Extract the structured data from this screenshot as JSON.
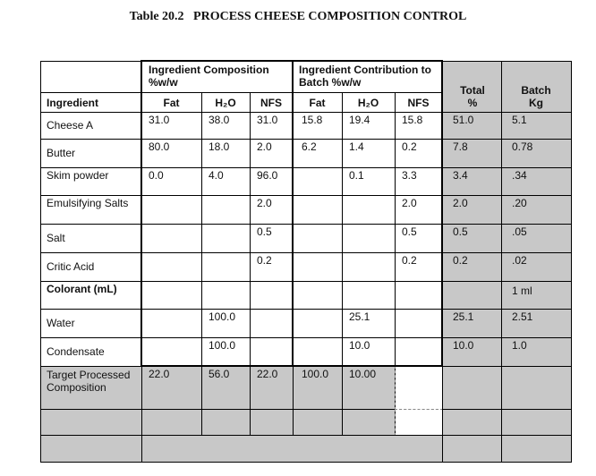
{
  "header": {
    "title": "Table 20.2   PROCESS CHEESE COMPOSITION CONTROL"
  },
  "table": {
    "group_headers": [
      "Ingredient Composition %w/w",
      "Ingredient Contribution to Batch %w/w",
      "Total %",
      "Batch Kg"
    ],
    "column_headers": [
      "Ingredient",
      "Fat",
      "H₂O",
      "NFS",
      "Fat",
      "H₂O",
      "NFS"
    ],
    "rows": [
      [
        "Cheese A",
        "31.0",
        "38.0",
        "31.0",
        "15.8",
        "19.4",
        "15.8",
        "51.0",
        "5.1"
      ],
      [
        "Butter",
        "80.0",
        "18.0",
        "2.0",
        "6.2",
        "1.4",
        "0.2",
        "7.8",
        "0.78"
      ],
      [
        "Skim powder",
        "0.0",
        "4.0",
        "96.0",
        null,
        "0.1",
        "3.3",
        "3.4",
        ".34"
      ],
      [
        "Emulsifying Salts",
        null,
        null,
        "2.0",
        null,
        null,
        "2.0",
        "2.0",
        ".20"
      ],
      [
        "Salt",
        null,
        null,
        "0.5",
        null,
        null,
        "0.5",
        "0.5",
        ".05"
      ],
      [
        "Critic Acid",
        null,
        null,
        "0.2",
        null,
        null,
        "0.2",
        "0.2",
        ".02"
      ],
      [
        "Colorant (mL)",
        null,
        null,
        null,
        null,
        null,
        null,
        null,
        "1 ml"
      ],
      [
        "Water",
        null,
        "100.0",
        null,
        null,
        "25.1",
        null,
        "25.1",
        "2.51"
      ],
      [
        "Condensate",
        null,
        "100.0",
        null,
        null,
        "10.0",
        null,
        "10.0",
        "1.0"
      ],
      [
        "Target Processed Composition",
        "22.0",
        "56.0",
        "22.0",
        "100.0",
        "10.00",
        null,
        null,
        null
      ]
    ]
  }
}
